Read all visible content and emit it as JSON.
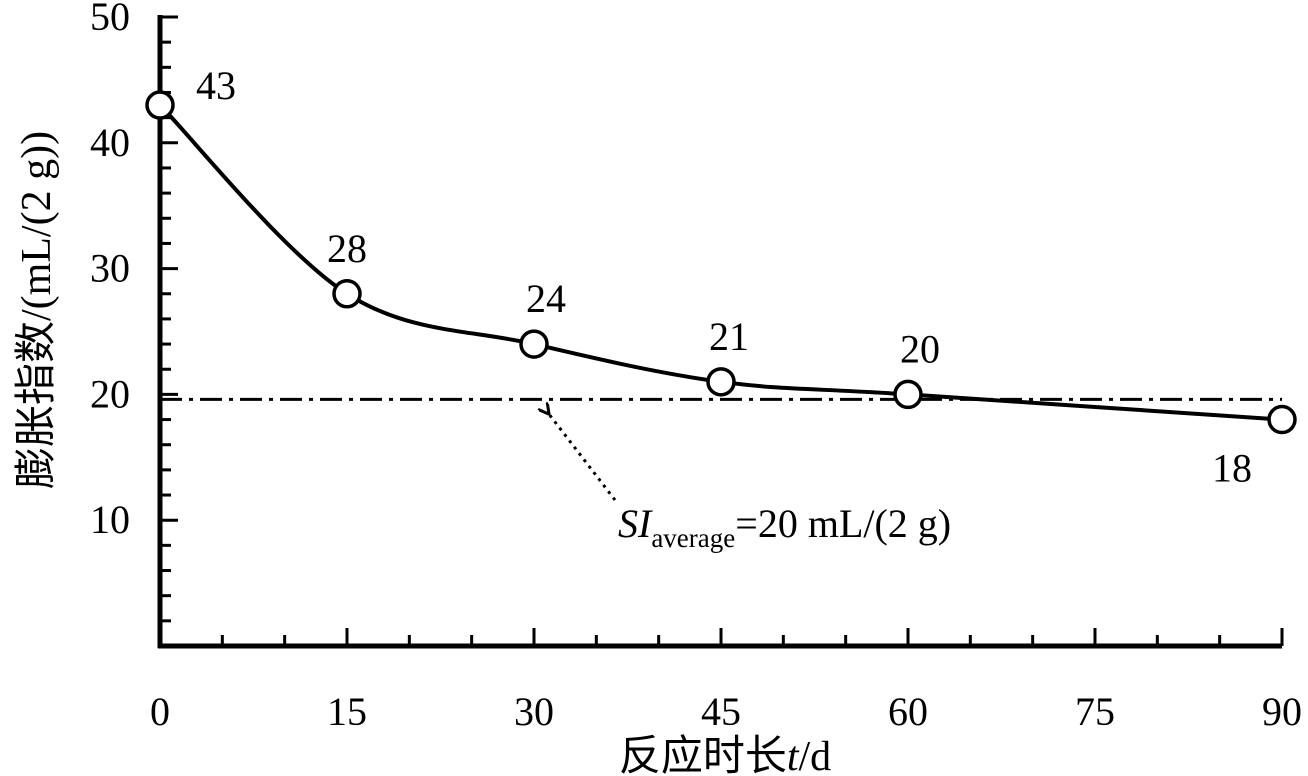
{
  "chart_data": {
    "type": "line",
    "xlabel_prefix": "反应时长",
    "xlabel_var": "t",
    "xlabel_suffix": "/d",
    "ylabel": "膨胀指数/(mL/(2 g))",
    "xlim": [
      0,
      90
    ],
    "ylim": [
      0,
      50
    ],
    "x_ticks": [
      0,
      15,
      30,
      45,
      60,
      75,
      90
    ],
    "y_ticks": [
      10,
      20,
      30,
      40,
      50
    ],
    "x_minor_step": 5,
    "y_minor_step": 2,
    "grid": false,
    "series": [
      {
        "x": [
          0,
          15,
          30,
          45,
          60,
          90
        ],
        "y": [
          43,
          28,
          24,
          21,
          20,
          18
        ],
        "labels": [
          "43",
          "28",
          "24",
          "21",
          "20",
          "18"
        ],
        "marker": "open-circle",
        "line": "smooth-solid"
      }
    ],
    "reference_line": {
      "y": 19.6,
      "style": "dash-dot"
    },
    "annotation": {
      "si": "SI",
      "sub": "average",
      "rest": "=20 mL/(2 g)",
      "arrow_target": {
        "x": 31,
        "y": 19.6
      }
    }
  }
}
